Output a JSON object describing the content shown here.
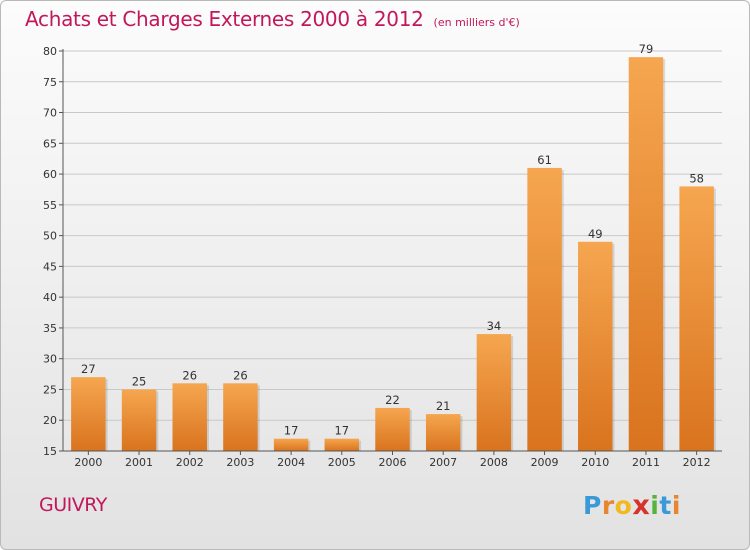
{
  "chart_data": {
    "type": "bar",
    "title": "Achats et Charges Externes 2000 à 2012",
    "subtitle": "(en milliers d'€)",
    "categories": [
      "2000",
      "2001",
      "2002",
      "2003",
      "2004",
      "2005",
      "2006",
      "2007",
      "2008",
      "2009",
      "2010",
      "2011",
      "2012"
    ],
    "values": [
      27,
      25,
      26,
      26,
      17,
      17,
      22,
      21,
      34,
      61,
      49,
      79,
      58
    ],
    "ylim": [
      15,
      80
    ],
    "yticks": [
      15,
      20,
      25,
      30,
      35,
      40,
      45,
      50,
      55,
      60,
      65,
      70,
      75,
      80
    ],
    "grid": "horizontal",
    "bar_color": "#f0913a"
  },
  "commune": "GUIVRY",
  "logo": {
    "letters": [
      "P",
      "r",
      "o",
      "x",
      "i",
      "t",
      "i"
    ],
    "colors": [
      "#3a9ad9",
      "#e8862f",
      "#f2b81d",
      "#d6342b",
      "#56b33e",
      "#3a9ad9",
      "#e8862f"
    ]
  }
}
